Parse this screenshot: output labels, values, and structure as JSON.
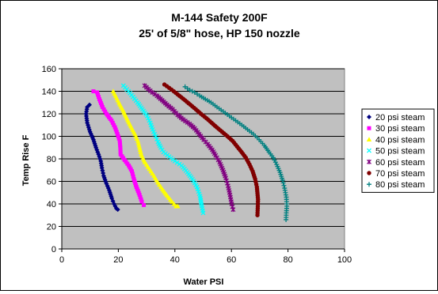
{
  "chart_data": {
    "type": "scatter",
    "title": "M-144 Safety 200F",
    "subtitle": "25' of 5/8\" hose, HP 150 nozzle",
    "xlabel": "Water PSI",
    "ylabel": "Temp Rise F",
    "xlim": [
      0,
      100
    ],
    "ylim": [
      0,
      160
    ],
    "xticks": [
      "0",
      "20",
      "40",
      "60",
      "80",
      "100"
    ],
    "yticks": [
      "0",
      "20",
      "40",
      "60",
      "80",
      "100",
      "120",
      "140",
      "160"
    ],
    "grid": true,
    "plot_background": "#c0c0c0",
    "legend_position": "right",
    "series": [
      {
        "name": "20 psi steam",
        "color": "#000080",
        "marker": "diamond",
        "points": [
          [
            9.8,
            128
          ],
          [
            9.0,
            126
          ],
          [
            8.6,
            120
          ],
          [
            9.0,
            112
          ],
          [
            10.0,
            104
          ],
          [
            11.2,
            97
          ],
          [
            12.1,
            90
          ],
          [
            13.0,
            84
          ],
          [
            13.8,
            78
          ],
          [
            14.2,
            72
          ],
          [
            14.8,
            65
          ],
          [
            15.8,
            58
          ],
          [
            16.8,
            52
          ],
          [
            17.7,
            45
          ],
          [
            18.5,
            40
          ],
          [
            19.3,
            36
          ],
          [
            19.8,
            35
          ]
        ]
      },
      {
        "name": "30 psi steam",
        "color": "#ff00ff",
        "marker": "square",
        "points": [
          [
            11.2,
            140
          ],
          [
            12.5,
            139
          ],
          [
            13.3,
            133
          ],
          [
            14.4,
            126
          ],
          [
            15.8,
            120
          ],
          [
            17.6,
            114
          ],
          [
            18.8,
            108
          ],
          [
            19.7,
            102
          ],
          [
            20.5,
            96
          ],
          [
            20.7,
            90
          ],
          [
            20.8,
            84
          ],
          [
            22.2,
            79
          ],
          [
            23.7,
            74
          ],
          [
            24.8,
            69
          ],
          [
            25.5,
            62
          ],
          [
            26.4,
            55
          ],
          [
            27.5,
            48
          ],
          [
            28.3,
            42
          ],
          [
            29.0,
            39
          ]
        ]
      },
      {
        "name": "40 psi steam",
        "color": "#ffff00",
        "marker": "triangle",
        "points": [
          [
            18.2,
            140
          ],
          [
            19.0,
            136
          ],
          [
            20.2,
            130
          ],
          [
            21.7,
            123
          ],
          [
            23.0,
            116
          ],
          [
            24.4,
            109
          ],
          [
            25.9,
            102
          ],
          [
            26.9,
            96
          ],
          [
            27.5,
            90
          ],
          [
            28.1,
            84
          ],
          [
            29.4,
            77
          ],
          [
            31.0,
            71
          ],
          [
            32.6,
            65
          ],
          [
            34.0,
            59
          ],
          [
            35.6,
            53
          ],
          [
            37.4,
            47
          ],
          [
            39.0,
            42
          ],
          [
            40.4,
            38
          ],
          [
            41.0,
            38
          ]
        ]
      },
      {
        "name": "50 psi steam",
        "color": "#00ffff",
        "marker": "x",
        "points": [
          [
            21.8,
            145
          ],
          [
            23.6,
            140
          ],
          [
            25.2,
            135
          ],
          [
            26.8,
            130
          ],
          [
            28.5,
            124
          ],
          [
            30.2,
            118
          ],
          [
            31.3,
            112
          ],
          [
            32.1,
            106
          ],
          [
            33.2,
            100
          ],
          [
            34.0,
            95
          ],
          [
            35.0,
            90
          ],
          [
            36.0,
            86
          ],
          [
            38.0,
            82
          ],
          [
            40.0,
            78
          ],
          [
            42.4,
            74
          ],
          [
            44.4,
            68
          ],
          [
            46.2,
            62
          ],
          [
            47.8,
            55
          ],
          [
            48.9,
            47
          ],
          [
            49.5,
            38
          ],
          [
            50.0,
            32
          ]
        ]
      },
      {
        "name": "60 psi steam",
        "color": "#800080",
        "marker": "star",
        "points": [
          [
            29.3,
            145
          ],
          [
            30.6,
            142
          ],
          [
            32.0,
            139
          ],
          [
            33.7,
            136
          ],
          [
            35.5,
            132
          ],
          [
            37.2,
            128
          ],
          [
            39.2,
            124
          ],
          [
            41.0,
            119
          ],
          [
            42.9,
            115
          ],
          [
            45.2,
            111
          ],
          [
            47.0,
            107
          ],
          [
            48.6,
            102
          ],
          [
            50.2,
            97
          ],
          [
            51.6,
            93
          ],
          [
            53.2,
            88
          ],
          [
            54.4,
            83
          ],
          [
            55.8,
            77
          ],
          [
            57.0,
            70
          ],
          [
            58.0,
            63
          ],
          [
            58.8,
            56
          ],
          [
            59.5,
            48
          ],
          [
            60.1,
            40
          ],
          [
            60.6,
            35
          ]
        ]
      },
      {
        "name": "70 psi steam",
        "color": "#800000",
        "marker": "circle",
        "points": [
          [
            36.3,
            146
          ],
          [
            38.0,
            143
          ],
          [
            39.6,
            140
          ],
          [
            41.6,
            136
          ],
          [
            43.6,
            132
          ],
          [
            45.5,
            128
          ],
          [
            47.4,
            124
          ],
          [
            49.2,
            120
          ],
          [
            51.2,
            116
          ],
          [
            53.0,
            112
          ],
          [
            54.8,
            108
          ],
          [
            56.7,
            104
          ],
          [
            58.6,
            100
          ],
          [
            60.4,
            96
          ],
          [
            62.0,
            91
          ],
          [
            63.6,
            86
          ],
          [
            65.1,
            81
          ],
          [
            66.4,
            75
          ],
          [
            67.5,
            69
          ],
          [
            68.4,
            62
          ],
          [
            69.0,
            55
          ],
          [
            69.4,
            44
          ],
          [
            69.3,
            36
          ],
          [
            69.2,
            30
          ]
        ]
      },
      {
        "name": "80 psi steam",
        "color": "#008080",
        "marker": "plus",
        "points": [
          [
            43.6,
            144
          ],
          [
            45.3,
            141
          ],
          [
            47.0,
            139
          ],
          [
            48.8,
            136
          ],
          [
            50.8,
            133
          ],
          [
            52.8,
            130
          ],
          [
            54.9,
            126
          ],
          [
            57.1,
            122
          ],
          [
            59.3,
            118
          ],
          [
            61.5,
            114
          ],
          [
            63.7,
            110
          ],
          [
            65.7,
            106
          ],
          [
            67.8,
            102
          ],
          [
            69.8,
            97
          ],
          [
            71.6,
            92
          ],
          [
            73.3,
            86
          ],
          [
            74.8,
            81
          ],
          [
            76.0,
            75
          ],
          [
            77.2,
            68
          ],
          [
            78.1,
            61
          ],
          [
            78.8,
            54
          ],
          [
            79.4,
            46
          ],
          [
            79.6,
            38
          ],
          [
            79.4,
            32
          ],
          [
            79.3,
            26
          ]
        ]
      }
    ]
  }
}
